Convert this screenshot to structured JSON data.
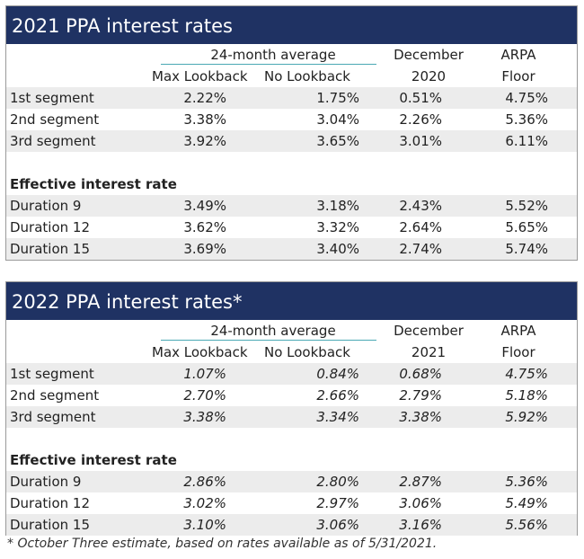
{
  "tables": [
    {
      "title": "2021 PPA interest rates",
      "header": {
        "group": "24-month average",
        "col1": "Max Lookback",
        "col2": "No Lookback",
        "col3_line1": "December",
        "col3_line2": "2020",
        "col4_line1": "ARPA",
        "col4_line2": "Floor"
      },
      "segments": [
        {
          "label": "1st segment",
          "v1": "2.22%",
          "v2": "1.75%",
          "v3": "0.51%",
          "v4": "4.75%"
        },
        {
          "label": "2nd segment",
          "v1": "3.38%",
          "v2": "3.04%",
          "v3": "2.26%",
          "v4": "5.36%"
        },
        {
          "label": "3rd segment",
          "v1": "3.92%",
          "v2": "3.65%",
          "v3": "3.01%",
          "v4": "6.11%"
        }
      ],
      "effective_title": "Effective interest rate",
      "durations": [
        {
          "label": "Duration 9",
          "v1": "3.49%",
          "v2": "3.18%",
          "v3": "2.43%",
          "v4": "5.52%"
        },
        {
          "label": "Duration 12",
          "v1": "3.62%",
          "v2": "3.32%",
          "v3": "2.64%",
          "v4": "5.65%"
        },
        {
          "label": "Duration 15",
          "v1": "3.69%",
          "v2": "3.40%",
          "v3": "2.74%",
          "v4": "5.74%"
        }
      ]
    },
    {
      "title": "2022 PPA interest rates*",
      "header": {
        "group": "24-month average",
        "col1": "Max Lookback",
        "col2": "No Lookback",
        "col3_line1": "December",
        "col3_line2": "2021",
        "col4_line1": "ARPA",
        "col4_line2": "Floor"
      },
      "segments": [
        {
          "label": "1st segment",
          "v1": "1.07%",
          "v2": "0.84%",
          "v3": "0.68%",
          "v4": "4.75%"
        },
        {
          "label": "2nd segment",
          "v1": "2.70%",
          "v2": "2.66%",
          "v3": "2.79%",
          "v4": "5.18%"
        },
        {
          "label": "3rd segment",
          "v1": "3.38%",
          "v2": "3.34%",
          "v3": "3.38%",
          "v4": "5.92%"
        }
      ],
      "effective_title": "Effective interest rate",
      "durations": [
        {
          "label": "Duration 9",
          "v1": "2.86%",
          "v2": "2.80%",
          "v3": "2.87%",
          "v4": "5.36%"
        },
        {
          "label": "Duration 12",
          "v1": "3.02%",
          "v2": "2.97%",
          "v3": "3.06%",
          "v4": "5.49%"
        },
        {
          "label": "Duration 15",
          "v1": "3.10%",
          "v2": "3.06%",
          "v3": "3.16%",
          "v4": "5.56%"
        }
      ]
    }
  ],
  "footnote": "* October Three estimate, based on rates available as of 5/31/2021.",
  "colors": {
    "header_bg": "#1f3263",
    "rule": "#4aa8b4",
    "shade": "#ececec"
  }
}
